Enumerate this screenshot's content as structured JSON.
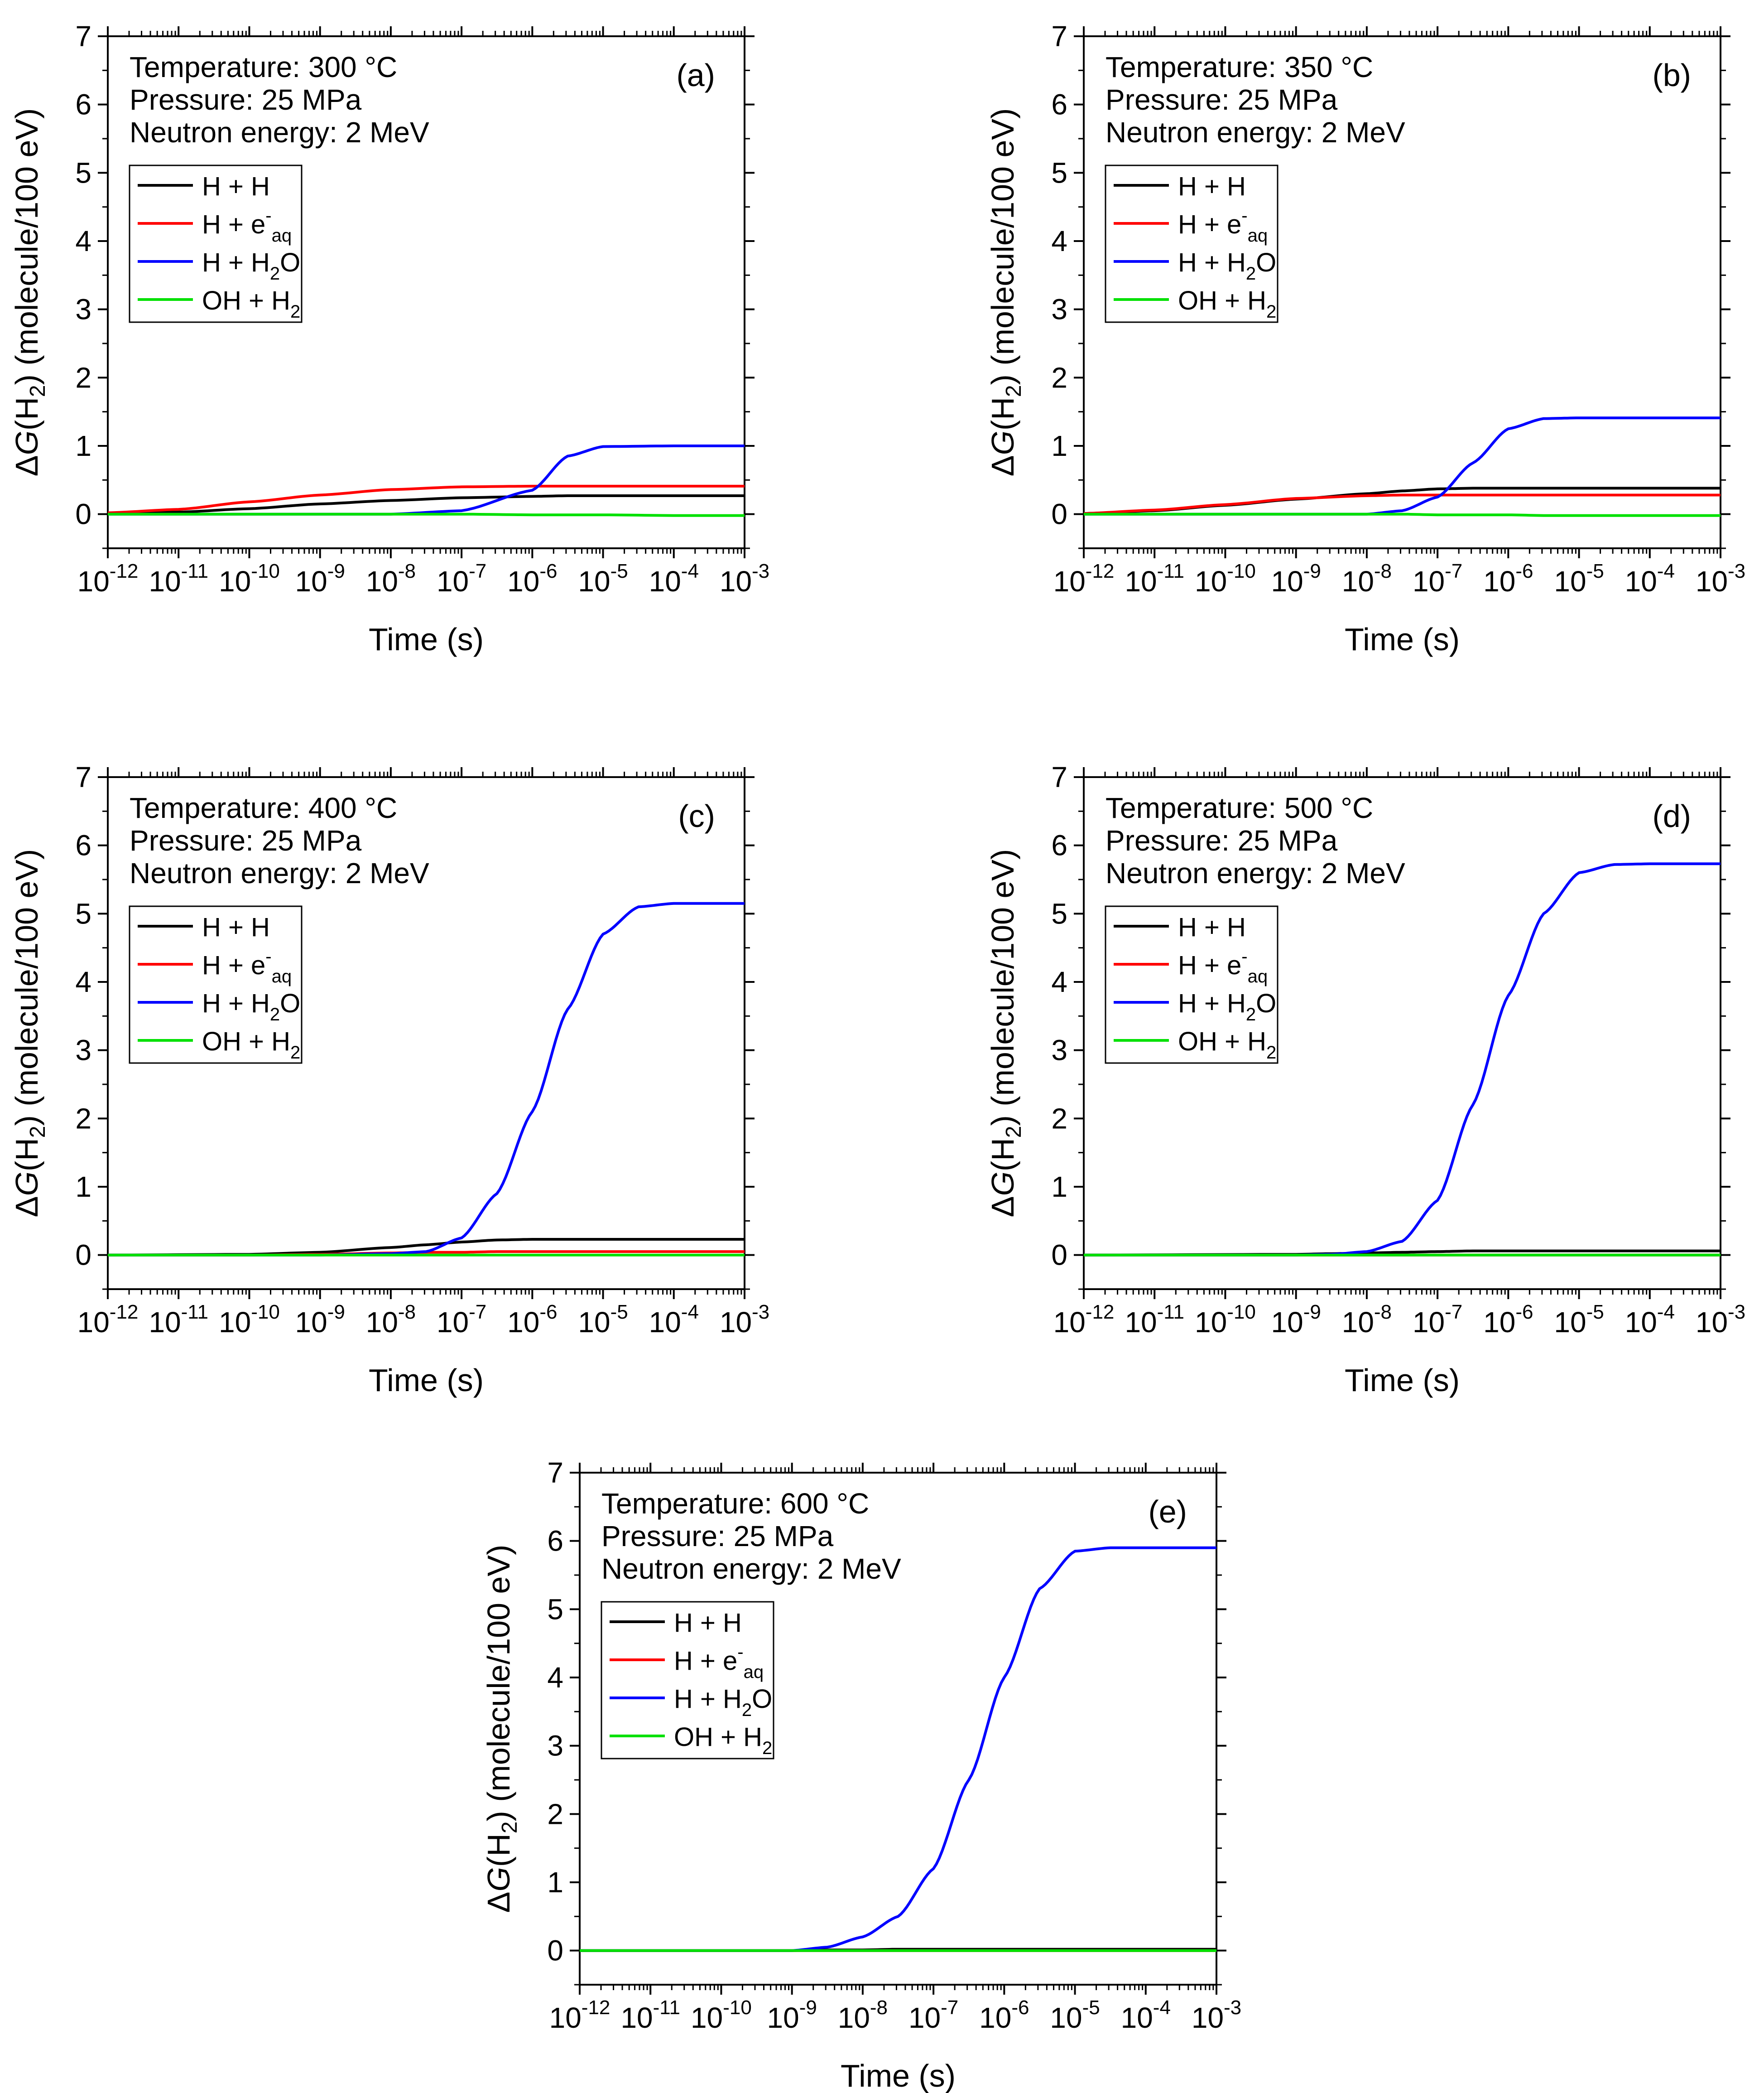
{
  "figure": {
    "shared": {
      "x_axis_label": "Time (s)",
      "y_axis_label": {
        "delta": "Δ",
        "g": "G",
        "open": "(H",
        "sub": "2",
        "close": ") (molecule/100 eV)"
      },
      "x_tick_base": "10",
      "x_tick_exponents": [
        "-12",
        "-11",
        "-10",
        "-9",
        "-8",
        "-7",
        "-6",
        "-5",
        "-4",
        "-3"
      ],
      "y_ticks": [
        "0",
        "1",
        "2",
        "3",
        "4",
        "5",
        "6",
        "7"
      ],
      "legend": [
        {
          "name": "H + H",
          "main": "H + H",
          "sup": "",
          "sub": "",
          "color": "#000000"
        },
        {
          "name": "H + e-aq",
          "main": "H + e",
          "sup": "-",
          "sub": "aq",
          "color": "#ff0000"
        },
        {
          "name": "H + H2O",
          "main": "H + H",
          "sup": "",
          "sub": "2",
          "tail": "O",
          "color": "#0000ff"
        },
        {
          "name": "OH + H2",
          "main": "OH + H",
          "sup": "",
          "sub": "2",
          "color": "#00e000"
        }
      ]
    },
    "panels": [
      {
        "label": "(a)",
        "annotations": [
          "Temperature: 300 °C",
          "Pressure: 25 MPa",
          "Neutron energy: 2 MeV"
        ]
      },
      {
        "label": "(b)",
        "annotations": [
          "Temperature: 350 °C",
          "Pressure: 25 MPa",
          "Neutron energy: 2 MeV"
        ]
      },
      {
        "label": "(c)",
        "annotations": [
          "Temperature: 400 °C",
          "Pressure: 25 MPa",
          "Neutron energy: 2 MeV"
        ]
      },
      {
        "label": "(d)",
        "annotations": [
          "Temperature: 500 °C",
          "Pressure: 25 MPa",
          "Neutron energy: 2 MeV"
        ]
      },
      {
        "label": "(e)",
        "annotations": [
          "Temperature: 600 °C",
          "Pressure: 25 MPa",
          "Neutron energy: 2 MeV"
        ]
      }
    ]
  },
  "chart_data": [
    {
      "type": "line",
      "panel": "(a)",
      "xlabel": "Time (s)",
      "ylabel": "ΔG(H2) (molecule/100 eV)",
      "xscale": "log",
      "xlim_exponent": [
        -12,
        -3
      ],
      "ylim": [
        -0.5,
        7
      ],
      "legend_position": "upper-left",
      "x_exponents": [
        -12,
        -11,
        -10,
        -9,
        -8,
        -7,
        -6,
        -5.5,
        -5,
        -4,
        -3
      ],
      "series": [
        {
          "name": "H + H",
          "values": [
            0.02,
            0.03,
            0.08,
            0.15,
            0.2,
            0.24,
            0.26,
            0.27,
            0.27,
            0.27,
            0.27
          ]
        },
        {
          "name": "H + e-aq",
          "values": [
            0.02,
            0.07,
            0.18,
            0.28,
            0.36,
            0.4,
            0.41,
            0.41,
            0.41,
            0.41,
            0.41
          ]
        },
        {
          "name": "H + H2O",
          "values": [
            0.0,
            0.0,
            0.0,
            0.0,
            0.0,
            0.05,
            0.35,
            0.85,
            0.99,
            1.0,
            1.0
          ]
        },
        {
          "name": "OH + H2",
          "values": [
            0.0,
            0.0,
            0.0,
            0.0,
            0.0,
            0.0,
            -0.01,
            -0.01,
            -0.01,
            -0.02,
            -0.02
          ]
        }
      ]
    },
    {
      "type": "line",
      "panel": "(b)",
      "xlabel": "Time (s)",
      "ylabel": "ΔG(H2) (molecule/100 eV)",
      "xscale": "log",
      "xlim_exponent": [
        -12,
        -3
      ],
      "ylim": [
        -0.5,
        7
      ],
      "legend_position": "upper-left",
      "x_exponents": [
        -12,
        -11,
        -10,
        -9,
        -8,
        -7.5,
        -7,
        -6.5,
        -6,
        -5.5,
        -5,
        -4,
        -3
      ],
      "series": [
        {
          "name": "H + H",
          "values": [
            0.01,
            0.05,
            0.13,
            0.22,
            0.3,
            0.34,
            0.37,
            0.38,
            0.38,
            0.38,
            0.38,
            0.38,
            0.38
          ]
        },
        {
          "name": "H + e-aq",
          "values": [
            0.01,
            0.06,
            0.14,
            0.23,
            0.27,
            0.28,
            0.28,
            0.28,
            0.28,
            0.28,
            0.28,
            0.28,
            0.28
          ]
        },
        {
          "name": "H + H2O",
          "values": [
            0.0,
            0.0,
            0.0,
            0.0,
            0.0,
            0.05,
            0.25,
            0.75,
            1.25,
            1.4,
            1.41,
            1.41,
            1.41
          ]
        },
        {
          "name": "OH + H2",
          "values": [
            0.0,
            0.0,
            0.0,
            0.0,
            0.0,
            0.0,
            -0.01,
            -0.01,
            -0.01,
            -0.02,
            -0.02,
            -0.02,
            -0.02
          ]
        }
      ]
    },
    {
      "type": "line",
      "panel": "(c)",
      "xlabel": "Time (s)",
      "ylabel": "ΔG(H2) (molecule/100 eV)",
      "xscale": "log",
      "xlim_exponent": [
        -12,
        -3
      ],
      "ylim": [
        -0.5,
        7
      ],
      "legend_position": "upper-left",
      "x_exponents": [
        -12,
        -10,
        -9,
        -8,
        -7.5,
        -7,
        -6.5,
        -6,
        -5.5,
        -5,
        -4.5,
        -4,
        -3
      ],
      "series": [
        {
          "name": "H + H",
          "values": [
            0.0,
            0.01,
            0.04,
            0.11,
            0.15,
            0.19,
            0.22,
            0.23,
            0.23,
            0.23,
            0.23,
            0.23,
            0.23
          ]
        },
        {
          "name": "H + e-aq",
          "values": [
            0.0,
            0.0,
            0.01,
            0.03,
            0.04,
            0.04,
            0.05,
            0.05,
            0.05,
            0.05,
            0.05,
            0.05,
            0.05
          ]
        },
        {
          "name": "H + H2O",
          "values": [
            0.0,
            0.0,
            0.0,
            0.02,
            0.05,
            0.25,
            0.9,
            2.1,
            3.6,
            4.7,
            5.1,
            5.15,
            5.15
          ]
        },
        {
          "name": "OH + H2",
          "values": [
            0.0,
            0.0,
            0.0,
            0.0,
            0.0,
            0.0,
            0.0,
            0.0,
            0.0,
            0.0,
            0.0,
            0.0,
            0.0
          ]
        }
      ]
    },
    {
      "type": "line",
      "panel": "(d)",
      "xlabel": "Time (s)",
      "ylabel": "ΔG(H2) (molecule/100 eV)",
      "xscale": "log",
      "xlim_exponent": [
        -12,
        -3
      ],
      "ylim": [
        -0.5,
        7
      ],
      "legend_position": "upper-left",
      "x_exponents": [
        -12,
        -9,
        -8.5,
        -8,
        -7.5,
        -7,
        -6.5,
        -6,
        -5.5,
        -5,
        -4.5,
        -4,
        -3
      ],
      "series": [
        {
          "name": "H + H",
          "values": [
            0.0,
            0.01,
            0.02,
            0.03,
            0.04,
            0.05,
            0.06,
            0.06,
            0.06,
            0.06,
            0.06,
            0.06,
            0.06
          ]
        },
        {
          "name": "H + e-aq",
          "values": [
            0.0,
            0.0,
            0.0,
            0.0,
            0.0,
            0.0,
            0.0,
            0.0,
            0.0,
            0.0,
            0.0,
            0.0,
            0.0
          ]
        },
        {
          "name": "H + H2O",
          "values": [
            0.0,
            0.0,
            0.01,
            0.05,
            0.2,
            0.8,
            2.2,
            3.8,
            5.0,
            5.6,
            5.72,
            5.73,
            5.73
          ]
        },
        {
          "name": "OH + H2",
          "values": [
            0.0,
            0.0,
            0.0,
            0.0,
            0.0,
            0.0,
            0.0,
            0.0,
            0.0,
            0.0,
            0.0,
            0.0,
            0.0
          ]
        }
      ]
    },
    {
      "type": "line",
      "panel": "(e)",
      "xlabel": "Time (s)",
      "ylabel": "ΔG(H2) (molecule/100 eV)",
      "xscale": "log",
      "xlim_exponent": [
        -12,
        -3
      ],
      "ylim": [
        -0.5,
        7
      ],
      "legend_position": "upper-left",
      "x_exponents": [
        -12,
        -9,
        -8.5,
        -8,
        -7.5,
        -7,
        -6.5,
        -6,
        -5.5,
        -5,
        -4.5,
        -4,
        -3
      ],
      "series": [
        {
          "name": "H + H",
          "values": [
            0.0,
            0.0,
            0.01,
            0.01,
            0.02,
            0.02,
            0.02,
            0.02,
            0.02,
            0.02,
            0.02,
            0.02,
            0.02
          ]
        },
        {
          "name": "H + e-aq",
          "values": [
            0.0,
            0.0,
            0.0,
            0.0,
            0.0,
            0.0,
            0.0,
            0.0,
            0.0,
            0.0,
            0.0,
            0.0,
            0.0
          ]
        },
        {
          "name": "H + H2O",
          "values": [
            0.0,
            0.0,
            0.05,
            0.2,
            0.5,
            1.2,
            2.5,
            4.0,
            5.3,
            5.85,
            5.9,
            5.9,
            5.9
          ]
        },
        {
          "name": "OH + H2",
          "values": [
            0.0,
            0.0,
            0.0,
            0.0,
            0.0,
            0.0,
            0.0,
            0.0,
            0.0,
            0.0,
            0.0,
            0.0,
            0.0
          ]
        }
      ]
    }
  ]
}
